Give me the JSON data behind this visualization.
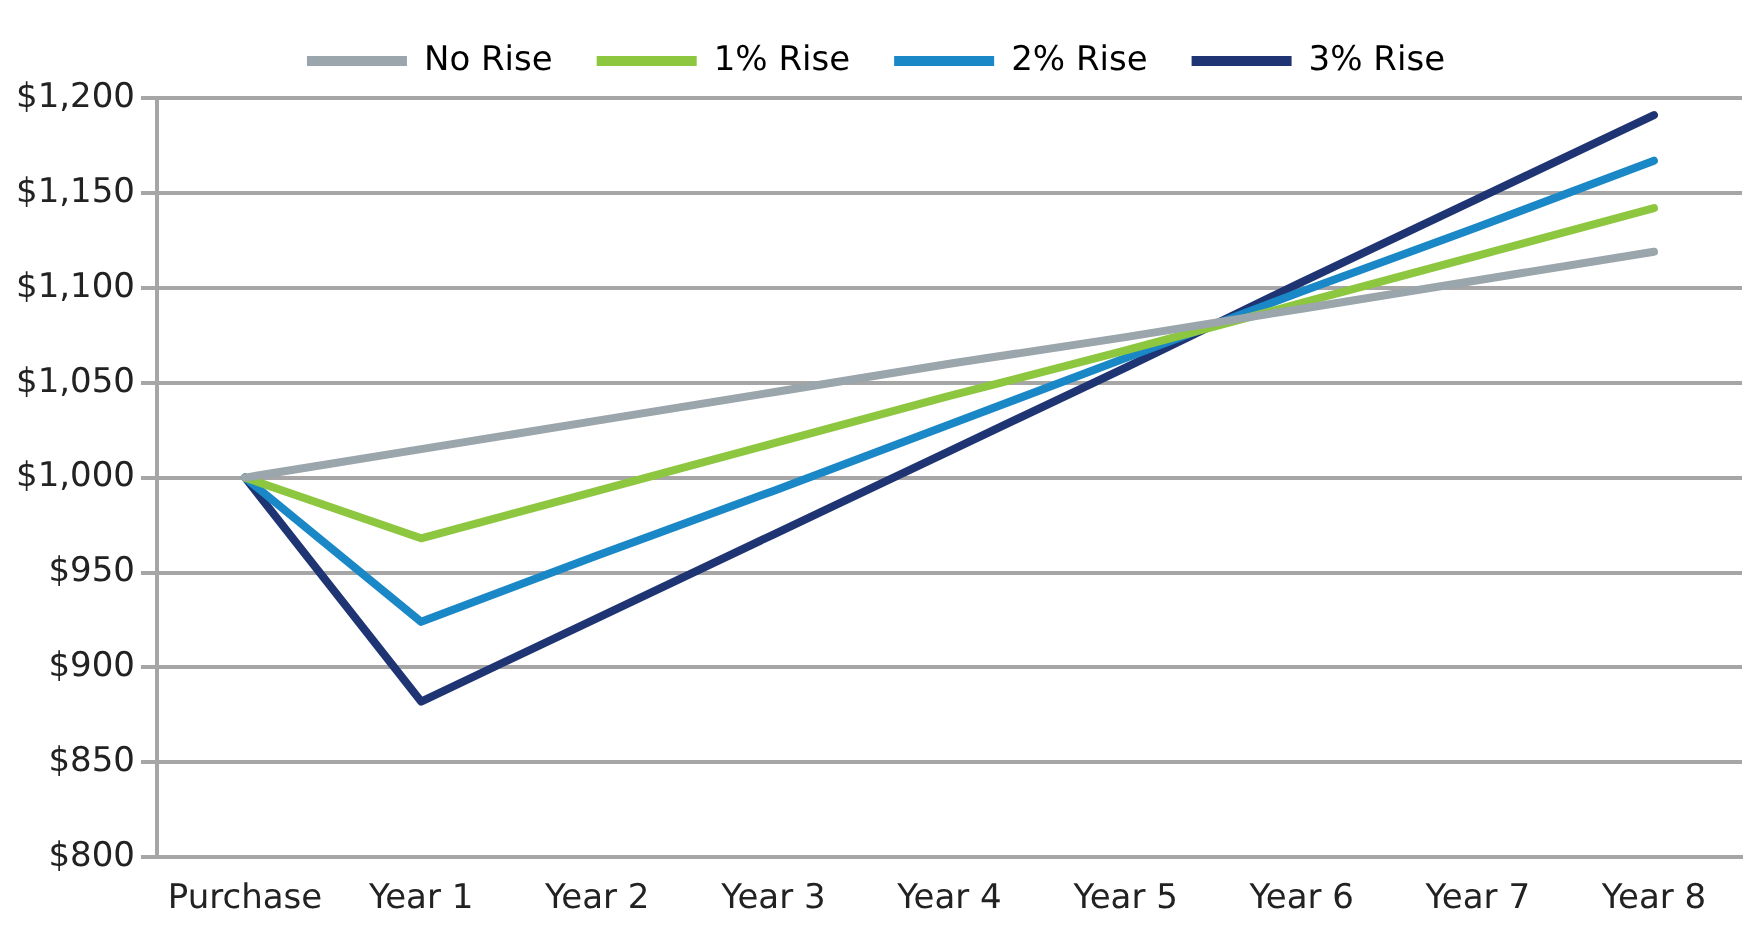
{
  "chart_data": {
    "type": "line",
    "categories": [
      "Purchase",
      "Year 1",
      "Year 2",
      "Year 3",
      "Year 4",
      "Year 5",
      "Year 6",
      "Year 7",
      "Year 8"
    ],
    "series": [
      {
        "name": "No Rise",
        "color": "#9aa5ac",
        "values": [
          1000,
          1015,
          1030,
          1045,
          1060,
          1074,
          1089,
          1104,
          1119
        ]
      },
      {
        "name": "1% Rise",
        "color": "#8dc63f",
        "values": [
          1000,
          968,
          993,
          1018,
          1043,
          1067,
          1092,
          1117,
          1142
        ]
      },
      {
        "name": "2% Rise",
        "color": "#1a87c6",
        "values": [
          1000,
          924,
          959,
          993,
          1028,
          1063,
          1098,
          1132,
          1167
        ]
      },
      {
        "name": "3% Rise",
        "color": "#1f3472",
        "values": [
          1000,
          882,
          926,
          970,
          1014,
          1058,
          1103,
          1147,
          1191
        ]
      }
    ],
    "ylim": [
      800,
      1200
    ],
    "yticks": [
      {
        "value": 800,
        "label": "$800"
      },
      {
        "value": 850,
        "label": "$850"
      },
      {
        "value": 900,
        "label": "$900"
      },
      {
        "value": 950,
        "label": "$950"
      },
      {
        "value": 1000,
        "label": "$1,000"
      },
      {
        "value": 1050,
        "label": "$1,050"
      },
      {
        "value": 1100,
        "label": "$1,100"
      },
      {
        "value": 1150,
        "label": "$1,150"
      },
      {
        "value": 1200,
        "label": "$1,200"
      }
    ],
    "grid": "y",
    "legend": "top",
    "marker": "none",
    "line_style": "solid"
  }
}
